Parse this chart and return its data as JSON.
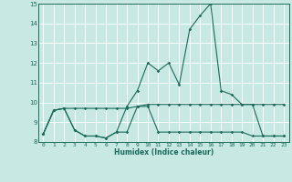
{
  "xlabel": "Humidex (Indice chaleur)",
  "x_values": [
    0,
    1,
    2,
    3,
    4,
    5,
    6,
    7,
    8,
    9,
    10,
    11,
    12,
    13,
    14,
    15,
    16,
    17,
    18,
    19,
    20,
    21,
    22,
    23
  ],
  "line_top": [
    8.4,
    9.6,
    9.7,
    8.6,
    8.3,
    8.3,
    8.2,
    8.5,
    9.8,
    10.6,
    12.0,
    11.6,
    12.0,
    10.9,
    13.7,
    14.4,
    15.0,
    10.6,
    10.4,
    9.9,
    9.9,
    8.3,
    8.3,
    8.3
  ],
  "line_mid": [
    8.4,
    9.6,
    9.7,
    9.7,
    9.7,
    9.7,
    9.7,
    9.7,
    9.7,
    9.8,
    9.9,
    9.9,
    9.9,
    9.9,
    9.9,
    9.9,
    9.9,
    9.9,
    9.9,
    9.9,
    9.9,
    9.9,
    9.9,
    9.9
  ],
  "line_bot": [
    8.4,
    9.6,
    9.7,
    8.6,
    8.3,
    8.3,
    8.2,
    8.5,
    8.5,
    9.8,
    9.8,
    8.5,
    8.5,
    8.5,
    8.5,
    8.5,
    8.5,
    8.5,
    8.5,
    8.5,
    8.3,
    8.3,
    8.3,
    8.3
  ],
  "ylim": [
    8,
    15
  ],
  "xlim": [
    -0.5,
    23.5
  ],
  "yticks": [
    8,
    9,
    10,
    11,
    12,
    13,
    14,
    15
  ],
  "xtick_labels": [
    "0",
    "1",
    "2",
    "3",
    "4",
    "5",
    "6",
    "7",
    "8",
    "9",
    "10",
    "11",
    "12",
    "13",
    "14",
    "15",
    "16",
    "17",
    "18",
    "19",
    "20",
    "21",
    "22",
    "23"
  ],
  "line_color": "#1a6b5a",
  "bg_color": "#c8e8e4",
  "grid_color": "#ffffff",
  "grid_minor_color": "#daf0ec",
  "figsize": [
    3.2,
    2.0
  ],
  "dpi": 100
}
